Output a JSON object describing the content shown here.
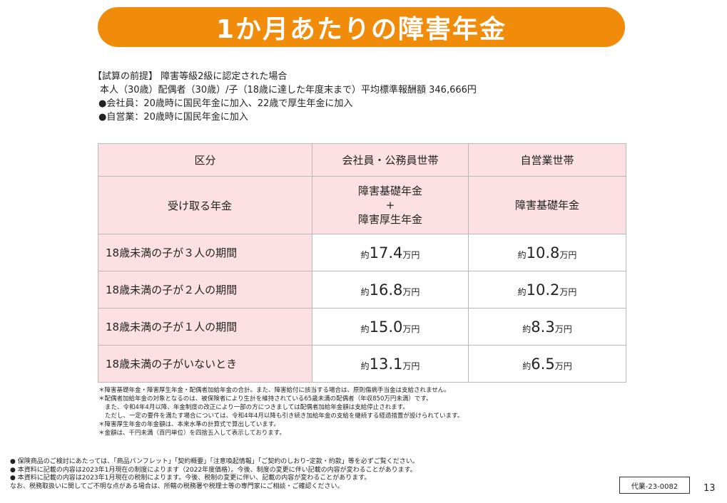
{
  "title": "1か月あたりの障害年金",
  "premise": {
    "heading": "【試算の前提】",
    "condition": "障害等級2級に認定された場合",
    "household": "本人（30歳）配偶者（30歳）/子（18歳に達した年度末まで）平均標準報酬額 346,666円",
    "employee": "●会社員：20歳時に国民年金に加入、22歳で厚生年金に加入",
    "self_employed": "●自営業：20歳時に国民年金に加入"
  },
  "table": {
    "headers": [
      "区分",
      "会社員・公務員世帯",
      "自営業世帯"
    ],
    "receive_row": {
      "label": "受け取る年金",
      "employee_lines": [
        "障害基礎年金",
        "+",
        "障害厚生年金"
      ],
      "self_employed": "障害基礎年金"
    },
    "prefix": "約",
    "unit": "万円",
    "rows": [
      {
        "label": "18歳未満の子が３人の期間",
        "employee": "17.4",
        "self_employed": "10.8"
      },
      {
        "label": "18歳未満の子が２人の期間",
        "employee": "16.8",
        "self_employed": "10.2"
      },
      {
        "label": "18歳未満の子が１人の期間",
        "employee": "15.0",
        "self_employed": "8.3"
      },
      {
        "label": "18歳未満の子がいないとき",
        "employee": "13.1",
        "self_employed": "6.5"
      }
    ]
  },
  "notes": [
    "＊障害基礎年金・障害厚生年金・配偶者加給年金の合計。また、障害給付に該当する場合は、原則傷病手当金は支給されません。",
    "＊配偶者加給年金の対象となるのは、被保険者により生計を維持されている65歳未満の配偶者（年収850万円未満）です。",
    "また、令和4年4月以降、年金制度の改正により一部の方につきましては配偶者加給年金額は支給停止されます。",
    "ただし、一定の要件を満たす場合については、令和4年4月以降も引き続き加給年金の支給を継続する経過措置が設けられています。",
    "＊障害厚生年金の年金額は、本来水準の計算式で算出しています。",
    "＊金額は、千円未満（百円単位）を四捨五入して表示しております。"
  ],
  "disclaimers": [
    "●  保険商品のご検討にあたっては、「商品パンフレット」「契約概要」「注意喚起情報」「ご契約のしおりｰ定款・約款」等を必ずご覧ください。",
    "●  本資料に記載の内容は2023年1月現在の制度によります（2022年度価格）。今後、制度の変更に伴い記載の内容が変わることがあります。",
    "●  本資料に記載の内容は2023年1月現在の税制によります。今後、税制の変更に伴い、記載の内容が変わることがあります。",
    "なお、税務取扱いに関してご不明な点がある場合は、所轄の税務署や税理士等の専門家にご相談・ご確認ください。"
  ],
  "code": "代業-23-0082",
  "page_number": "13"
}
